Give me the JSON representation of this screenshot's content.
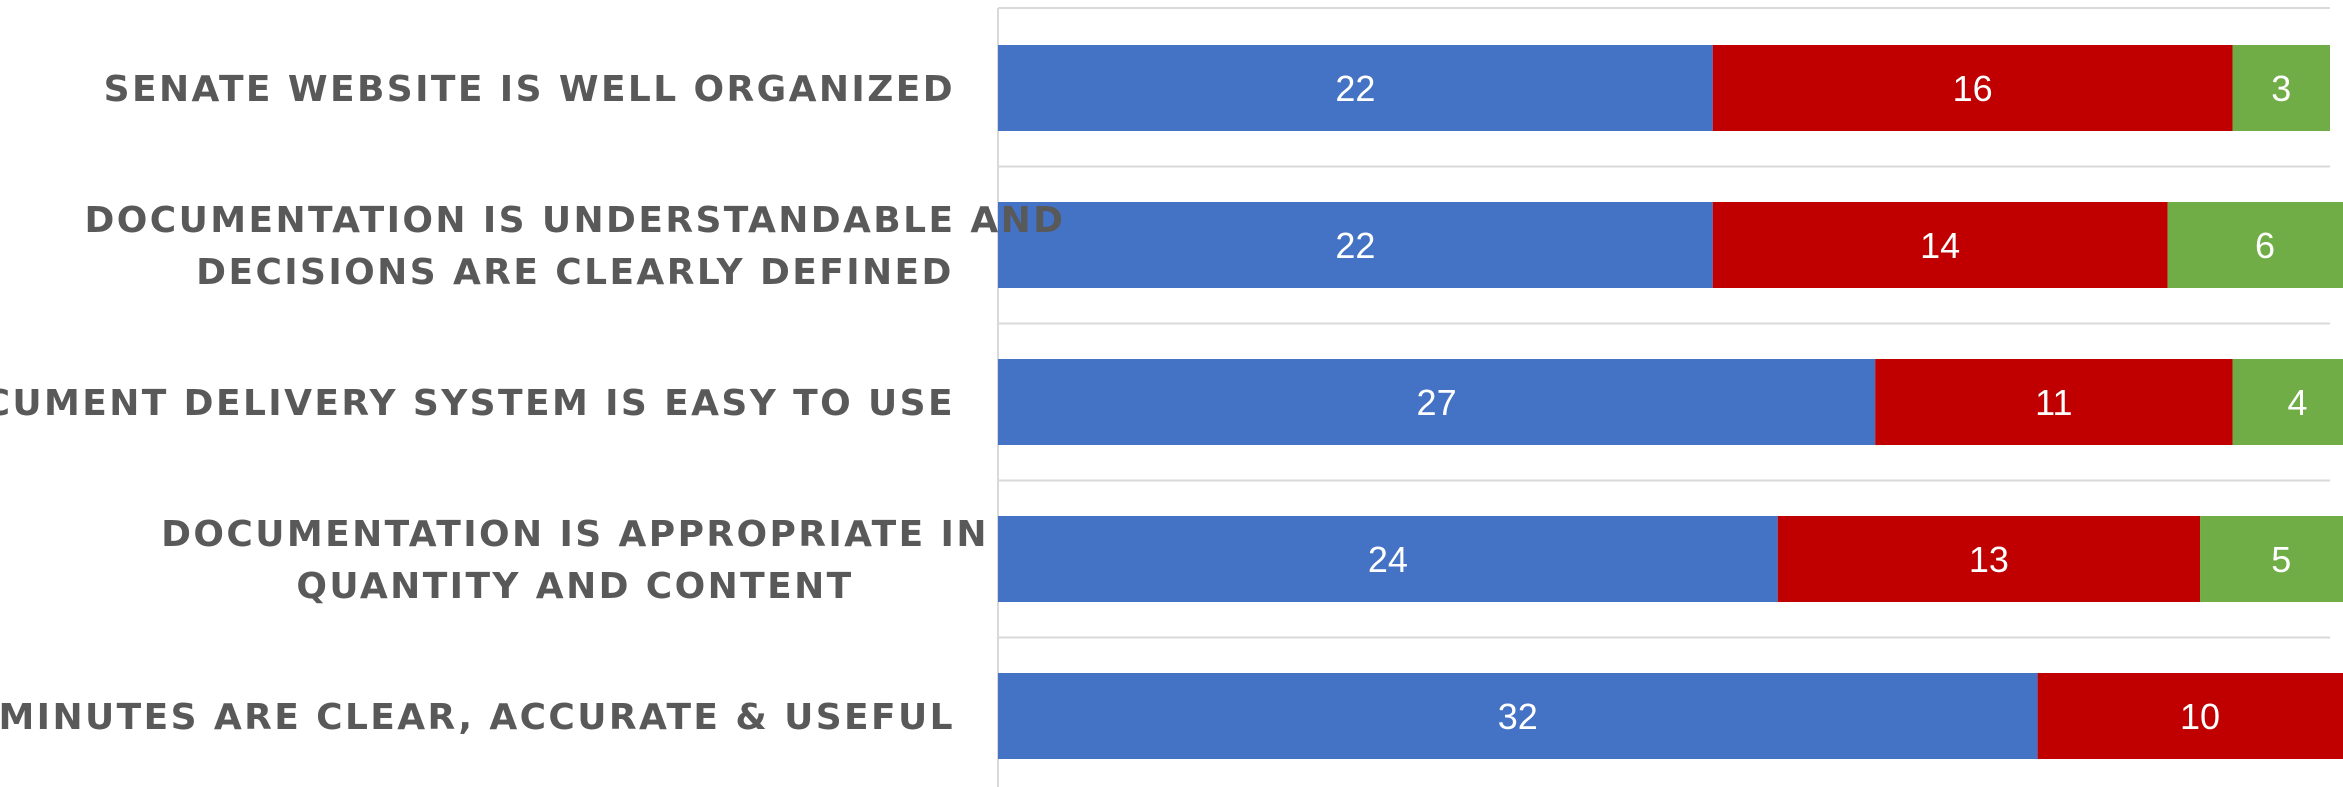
{
  "chart_data": {
    "type": "bar",
    "orientation": "horizontal",
    "stacked": true,
    "categories": [
      [
        "SENATE WEBSITE IS WELL ORGANIZED"
      ],
      [
        "DOCUMENTATION IS UNDERSTANDABLE AND",
        "DECISIONS ARE CLEARLY DEFINED"
      ],
      [
        "DOCUMENT DELIVERY SYSTEM IS EASY TO USE"
      ],
      [
        "DOCUMENTATION IS APPROPRIATE IN",
        "QUANTITY AND CONTENT"
      ],
      [
        "MINUTES ARE CLEAR, ACCURATE & USEFUL"
      ]
    ],
    "series": [
      {
        "values": [
          22,
          22,
          27,
          24,
          32
        ],
        "color": "#4472C4"
      },
      {
        "values": [
          16,
          14,
          11,
          13,
          10
        ],
        "color": "#C00000"
      },
      {
        "values": [
          3,
          6,
          4,
          5,
          null
        ],
        "color": "#70AD47"
      }
    ],
    "xlim": [
      0,
      41
    ],
    "grid": true,
    "legend": "none"
  }
}
